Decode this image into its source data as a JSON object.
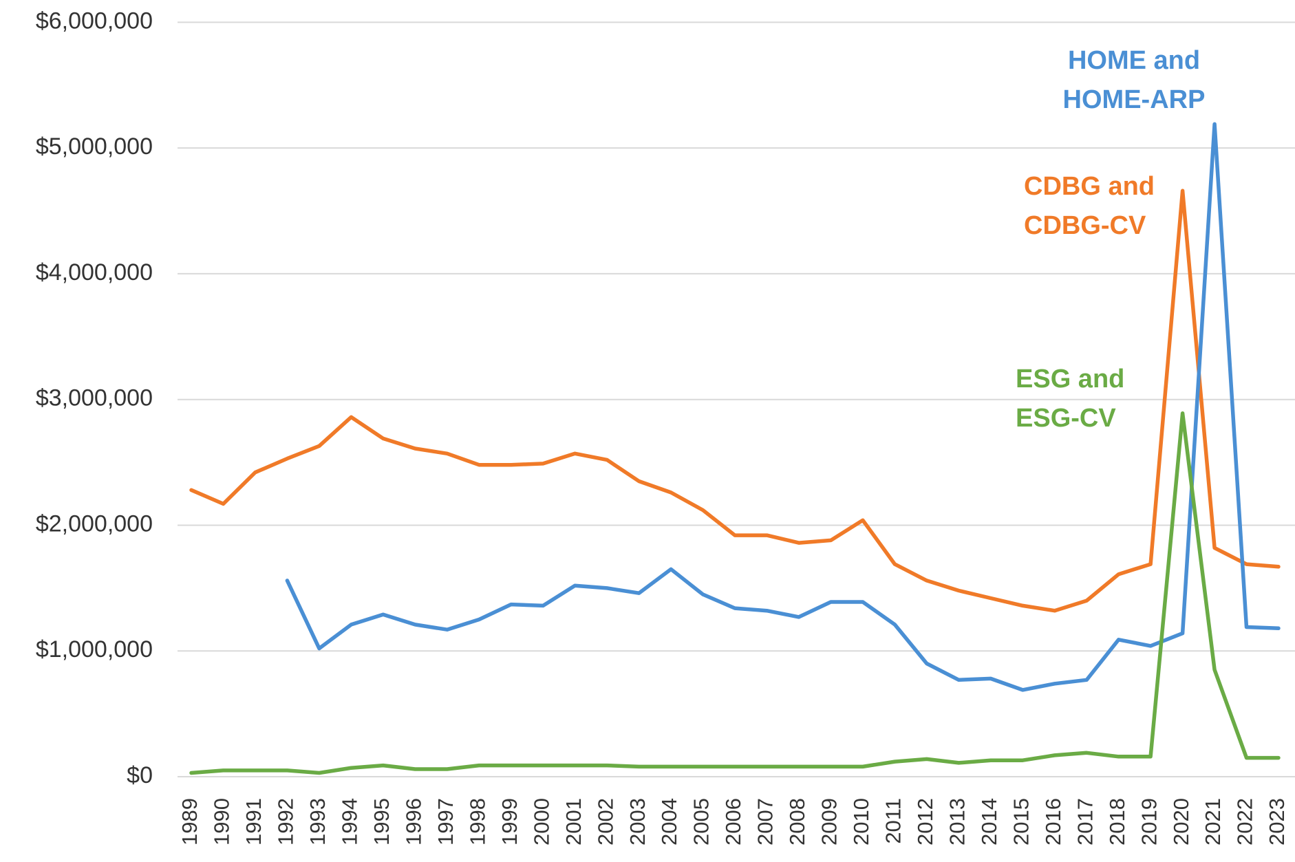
{
  "chart_data": {
    "type": "line",
    "categories": [
      "1989",
      "1990",
      "1991",
      "1992",
      "1993",
      "1994",
      "1995",
      "1996",
      "1997",
      "1998",
      "1999",
      "2000",
      "2001",
      "2002",
      "2003",
      "2004",
      "2005",
      "2006",
      "2007",
      "2008",
      "2009",
      "2010",
      "2011",
      "2012",
      "2013",
      "2014",
      "2015",
      "2016",
      "2017",
      "2018",
      "2019",
      "2020",
      "2021",
      "2022",
      "2023"
    ],
    "series": [
      {
        "name": "CDBG and CDBG-CV",
        "color": "#f07a28",
        "values": [
          2280000,
          2170000,
          2420000,
          2530000,
          2630000,
          2860000,
          2690000,
          2610000,
          2570000,
          2480000,
          2480000,
          2490000,
          2570000,
          2520000,
          2350000,
          2260000,
          2120000,
          1920000,
          1920000,
          1860000,
          1880000,
          2040000,
          1690000,
          1560000,
          1480000,
          1420000,
          1360000,
          1320000,
          1400000,
          1610000,
          1690000,
          4660000,
          1820000,
          1690000,
          1670000
        ]
      },
      {
        "name": "HOME and HOME-ARP",
        "color": "#4a8fd4",
        "values": [
          null,
          null,
          null,
          1560000,
          1020000,
          1210000,
          1290000,
          1210000,
          1170000,
          1250000,
          1370000,
          1360000,
          1520000,
          1500000,
          1460000,
          1650000,
          1450000,
          1340000,
          1320000,
          1270000,
          1390000,
          1390000,
          1210000,
          900000,
          770000,
          780000,
          690000,
          740000,
          770000,
          1090000,
          1040000,
          1140000,
          5190000,
          1190000,
          1180000
        ]
      },
      {
        "name": "ESG and ESG-CV",
        "color": "#6aab45",
        "values": [
          30000,
          50000,
          50000,
          50000,
          30000,
          70000,
          90000,
          60000,
          60000,
          90000,
          90000,
          90000,
          90000,
          90000,
          80000,
          80000,
          80000,
          80000,
          80000,
          80000,
          80000,
          80000,
          120000,
          140000,
          110000,
          130000,
          130000,
          170000,
          190000,
          160000,
          160000,
          2890000,
          850000,
          150000,
          150000
        ]
      }
    ],
    "ylim": [
      0,
      6000000
    ],
    "yticks": [
      {
        "value": 0,
        "label": "$0"
      },
      {
        "value": 1000000,
        "label": "$1,000,000"
      },
      {
        "value": 2000000,
        "label": "$2,000,000"
      },
      {
        "value": 3000000,
        "label": "$3,000,000"
      },
      {
        "value": 4000000,
        "label": "$4,000,000"
      },
      {
        "value": 5000000,
        "label": "$5,000,000"
      },
      {
        "value": 6000000,
        "label": "$6,000,000"
      }
    ],
    "grid": true
  }
}
